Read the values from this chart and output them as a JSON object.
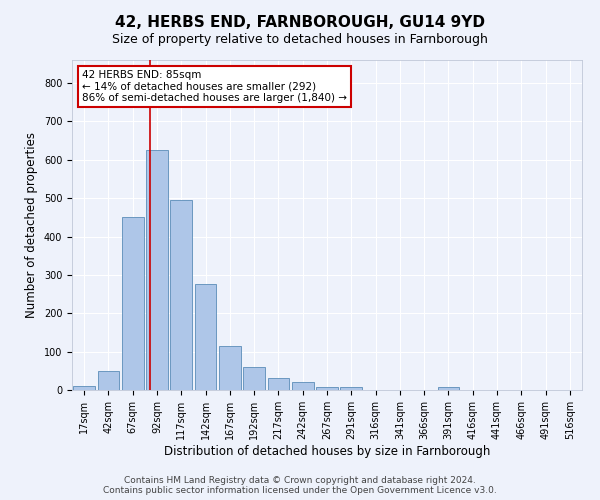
{
  "title": "42, HERBS END, FARNBOROUGH, GU14 9YD",
  "subtitle": "Size of property relative to detached houses in Farnborough",
  "xlabel": "Distribution of detached houses by size in Farnborough",
  "ylabel": "Number of detached properties",
  "categories": [
    "17sqm",
    "42sqm",
    "67sqm",
    "92sqm",
    "117sqm",
    "142sqm",
    "167sqm",
    "192sqm",
    "217sqm",
    "242sqm",
    "267sqm",
    "291sqm",
    "316sqm",
    "341sqm",
    "366sqm",
    "391sqm",
    "416sqm",
    "441sqm",
    "466sqm",
    "491sqm",
    "516sqm"
  ],
  "values": [
    10,
    50,
    450,
    625,
    495,
    275,
    115,
    60,
    32,
    20,
    8,
    8,
    0,
    0,
    0,
    8,
    0,
    0,
    0,
    0,
    0
  ],
  "bar_color": "#aec6e8",
  "bar_edge_color": "#5b8db8",
  "annotation_line1": "42 HERBS END: 85sqm",
  "annotation_line2": "← 14% of detached houses are smaller (292)",
  "annotation_line3": "86% of semi-detached houses are larger (1,840) →",
  "annotation_box_color": "#ffffff",
  "annotation_box_edge": "#cc0000",
  "vline_color": "#cc0000",
  "footer1": "Contains HM Land Registry data © Crown copyright and database right 2024.",
  "footer2": "Contains public sector information licensed under the Open Government Licence v3.0.",
  "ylim": [
    0,
    860
  ],
  "bg_color": "#eef2fb",
  "plot_bg_color": "#eef2fb",
  "grid_color": "#ffffff",
  "title_fontsize": 11,
  "subtitle_fontsize": 9,
  "axis_label_fontsize": 8.5,
  "tick_fontsize": 7,
  "annotation_fontsize": 7.5,
  "footer_fontsize": 6.5
}
